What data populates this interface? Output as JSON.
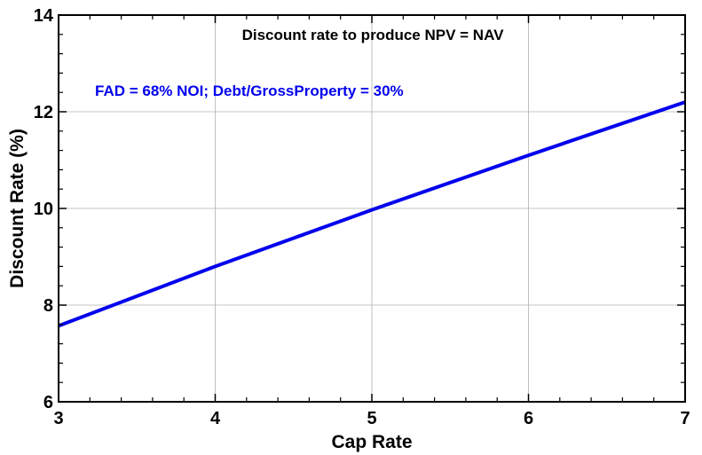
{
  "chart_data": {
    "type": "line",
    "title": "Discount rate to produce NPV = NAV",
    "annotation": "FAD = 68% NOI; Debt/GrossProperty = 30%",
    "xlabel": "Cap Rate",
    "ylabel": "Discount Rate (%)",
    "xlim": [
      3,
      7
    ],
    "ylim": [
      6,
      14
    ],
    "xticks": [
      "3",
      "4",
      "5",
      "6",
      "7"
    ],
    "yticks": [
      "6",
      "8",
      "10",
      "12",
      "14"
    ],
    "grid": true,
    "series": [
      {
        "color": "#0000ee",
        "x": [
          3,
          4,
          5,
          6,
          7
        ],
        "y": [
          7.57,
          8.8,
          9.97,
          11.1,
          12.2
        ]
      }
    ],
    "colors": {
      "line": "#0000ee",
      "annotation": "#0000ee",
      "grid": "#b0b0b0"
    }
  }
}
